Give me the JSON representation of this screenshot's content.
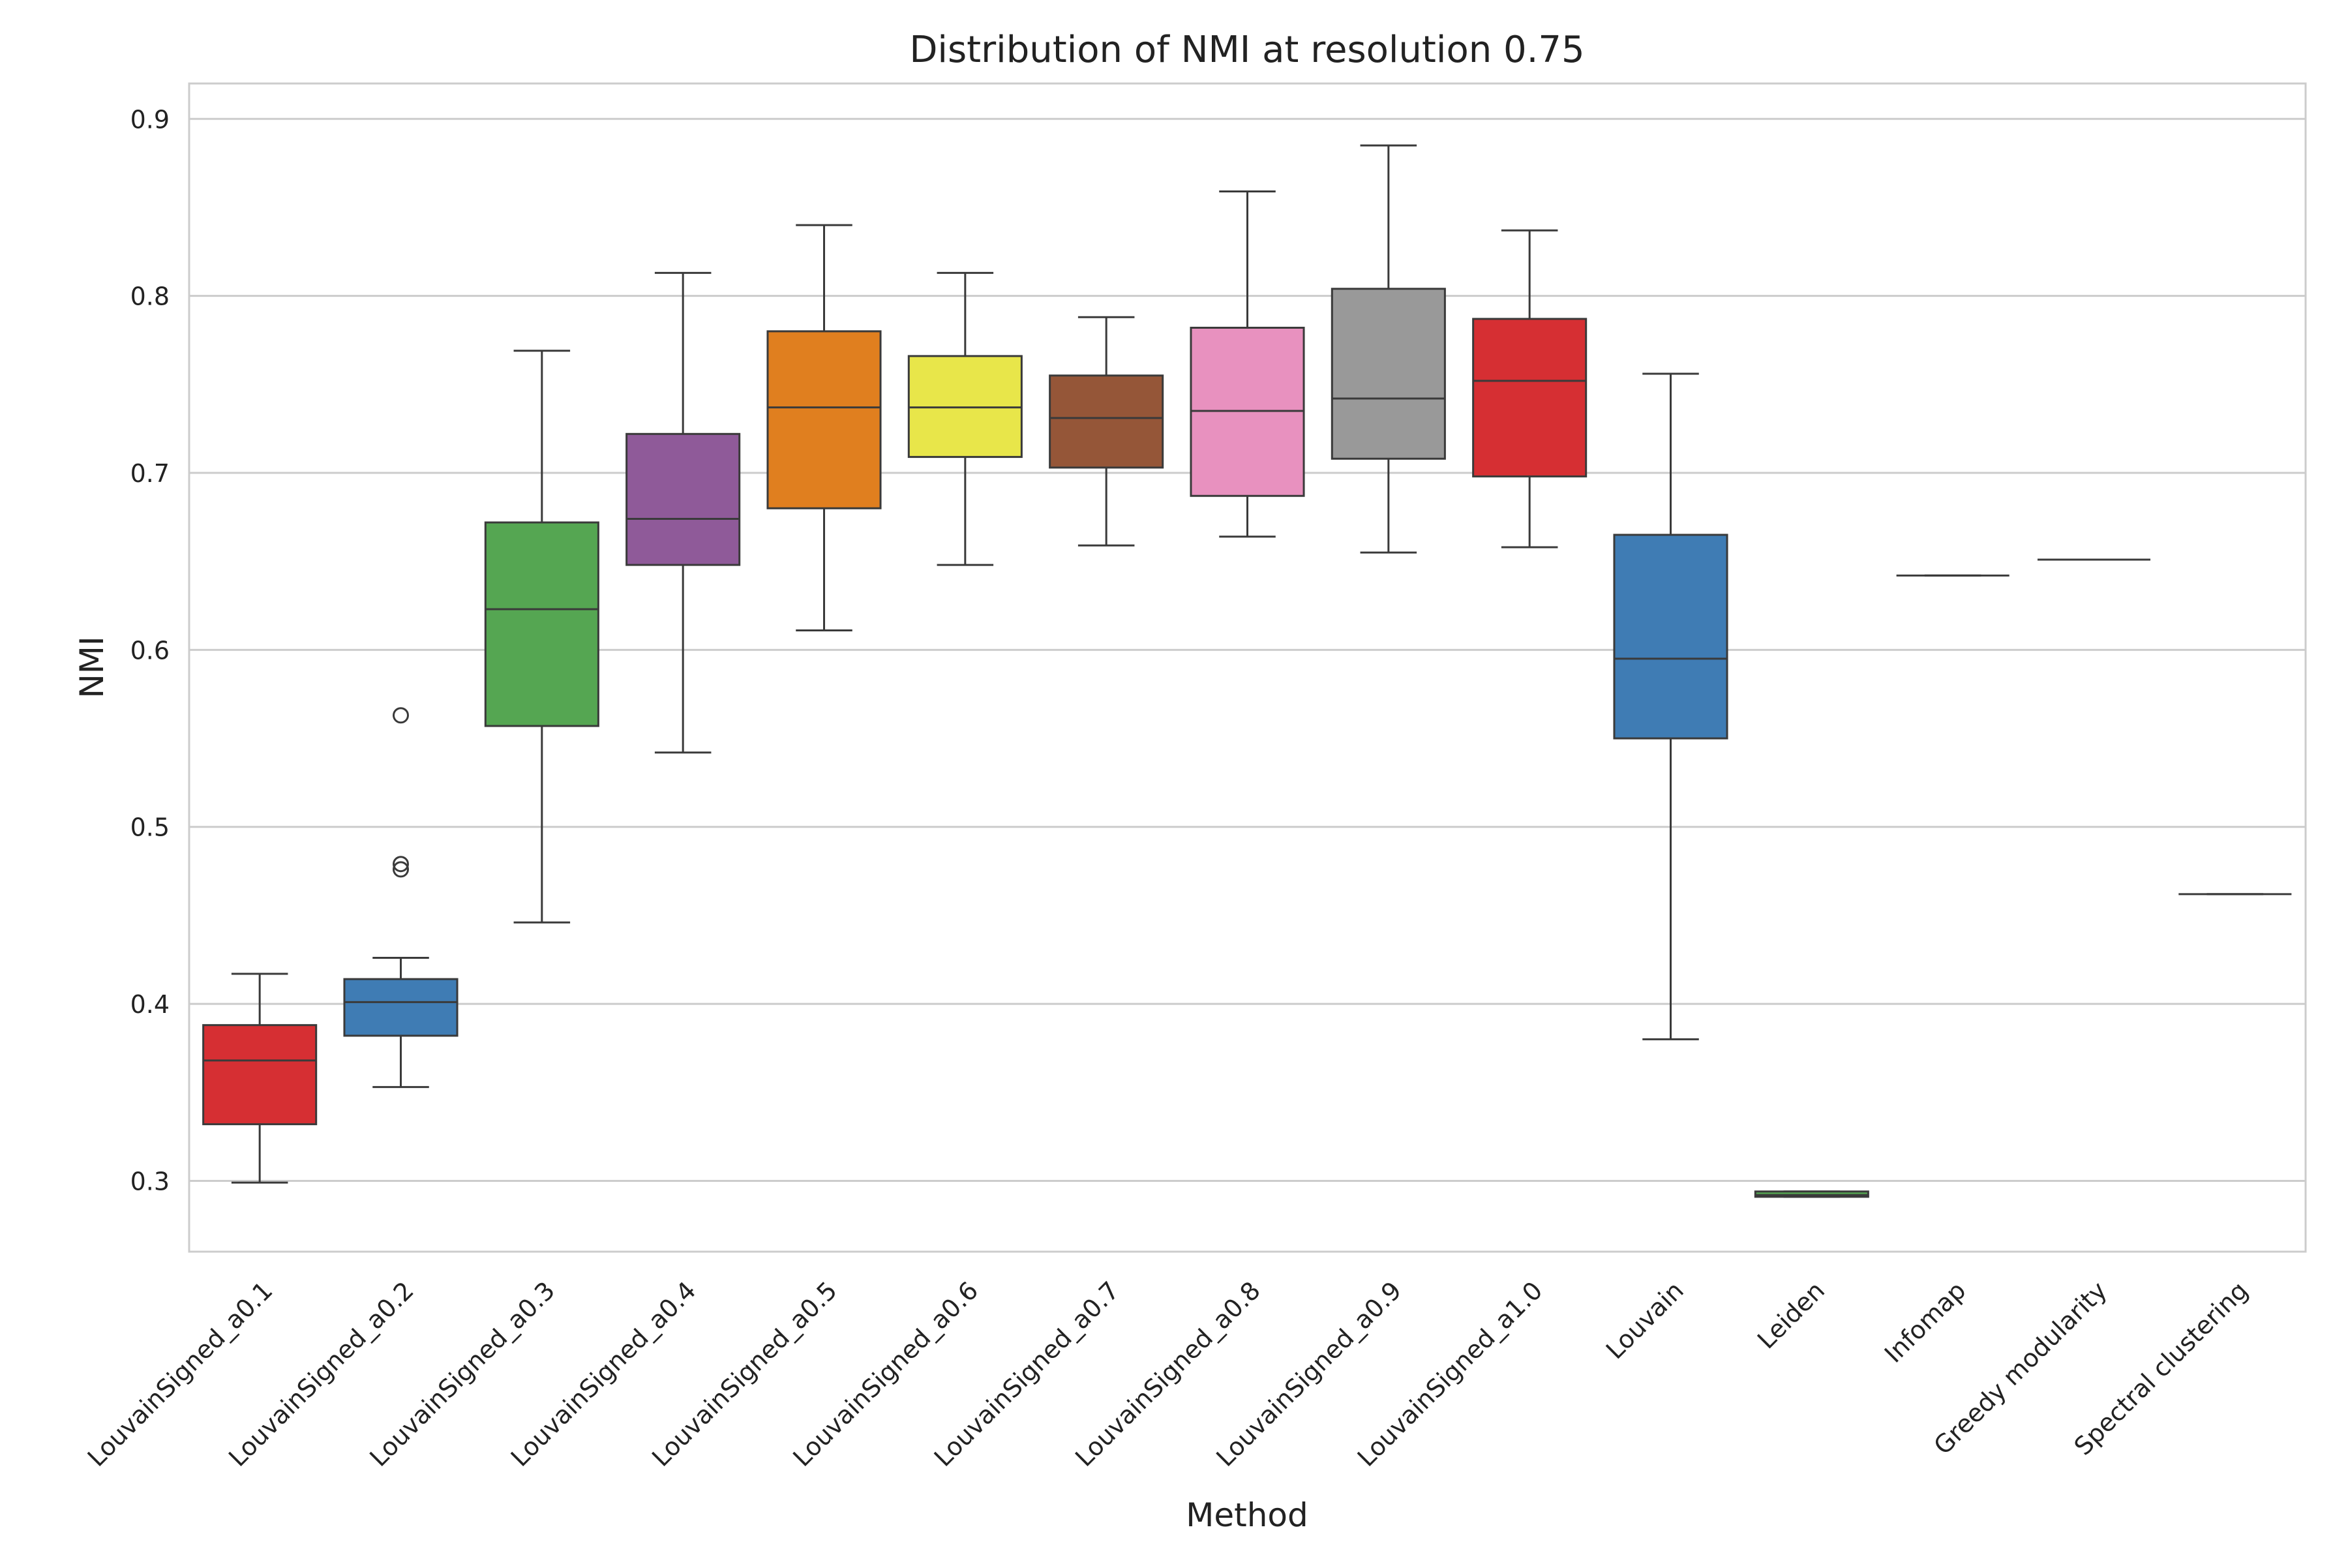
{
  "chart_data": {
    "type": "box",
    "title": "Distribution of NMI at resolution 0.75",
    "xlabel": "Method",
    "ylabel": "NMI",
    "ylim": [
      0.26,
      0.92
    ],
    "yticks": [
      "0.3",
      "0.4",
      "0.5",
      "0.6",
      "0.7",
      "0.8",
      "0.9"
    ],
    "grid": true,
    "series": [
      {
        "category": "LouvainSigned_a0.1",
        "color": "#d62f33",
        "whisker_low": 0.299,
        "q1": 0.332,
        "median": 0.368,
        "q3": 0.388,
        "whisker_high": 0.417,
        "outliers": []
      },
      {
        "category": "LouvainSigned_a0.2",
        "color": "#3f7cb4",
        "whisker_low": 0.353,
        "q1": 0.382,
        "median": 0.401,
        "q3": 0.414,
        "whisker_high": 0.426,
        "outliers": [
          0.476,
          0.479,
          0.563
        ]
      },
      {
        "category": "LouvainSigned_a0.3",
        "color": "#55a652",
        "whisker_low": 0.446,
        "q1": 0.557,
        "median": 0.623,
        "q3": 0.672,
        "whisker_high": 0.769,
        "outliers": []
      },
      {
        "category": "LouvainSigned_a0.4",
        "color": "#8f5a99",
        "whisker_low": 0.542,
        "q1": 0.648,
        "median": 0.674,
        "q3": 0.722,
        "whisker_high": 0.813,
        "outliers": []
      },
      {
        "category": "LouvainSigned_a0.5",
        "color": "#e07f1f",
        "whisker_low": 0.611,
        "q1": 0.68,
        "median": 0.737,
        "q3": 0.78,
        "whisker_high": 0.84,
        "outliers": []
      },
      {
        "category": "LouvainSigned_a0.6",
        "color": "#e8e64a",
        "whisker_low": 0.648,
        "q1": 0.709,
        "median": 0.737,
        "q3": 0.766,
        "whisker_high": 0.813,
        "outliers": []
      },
      {
        "category": "LouvainSigned_a0.7",
        "color": "#955638",
        "whisker_low": 0.659,
        "q1": 0.703,
        "median": 0.731,
        "q3": 0.755,
        "whisker_high": 0.788,
        "outliers": []
      },
      {
        "category": "LouvainSigned_a0.8",
        "color": "#e891bf",
        "whisker_low": 0.664,
        "q1": 0.687,
        "median": 0.735,
        "q3": 0.782,
        "whisker_high": 0.859,
        "outliers": []
      },
      {
        "category": "LouvainSigned_a0.9",
        "color": "#999999",
        "whisker_low": 0.655,
        "q1": 0.708,
        "median": 0.742,
        "q3": 0.804,
        "whisker_high": 0.885,
        "outliers": []
      },
      {
        "category": "LouvainSigned_a1.0",
        "color": "#d62f33",
        "whisker_low": 0.658,
        "q1": 0.698,
        "median": 0.752,
        "q3": 0.787,
        "whisker_high": 0.837,
        "outliers": []
      },
      {
        "category": "Louvain",
        "color": "#3f7cb4",
        "whisker_low": 0.38,
        "q1": 0.55,
        "median": 0.595,
        "q3": 0.665,
        "whisker_high": 0.756,
        "outliers": []
      },
      {
        "category": "Leiden",
        "color": "#55a652",
        "whisker_low": 0.291,
        "q1": 0.291,
        "median": 0.292,
        "q3": 0.294,
        "whisker_high": 0.294,
        "outliers": []
      },
      {
        "category": "Infomap",
        "color": "#8f5a99",
        "whisker_low": 0.642,
        "q1": 0.642,
        "median": 0.642,
        "q3": 0.642,
        "whisker_high": 0.642,
        "outliers": []
      },
      {
        "category": "Greedy modularity",
        "color": "#e07f1f",
        "whisker_low": 0.651,
        "q1": 0.651,
        "median": 0.651,
        "q3": 0.651,
        "whisker_high": 0.651,
        "outliers": []
      },
      {
        "category": "Spectral clustering",
        "color": "#e8e64a",
        "whisker_low": 0.462,
        "q1": 0.462,
        "median": 0.462,
        "q3": 0.462,
        "whisker_high": 0.462,
        "outliers": []
      }
    ]
  }
}
